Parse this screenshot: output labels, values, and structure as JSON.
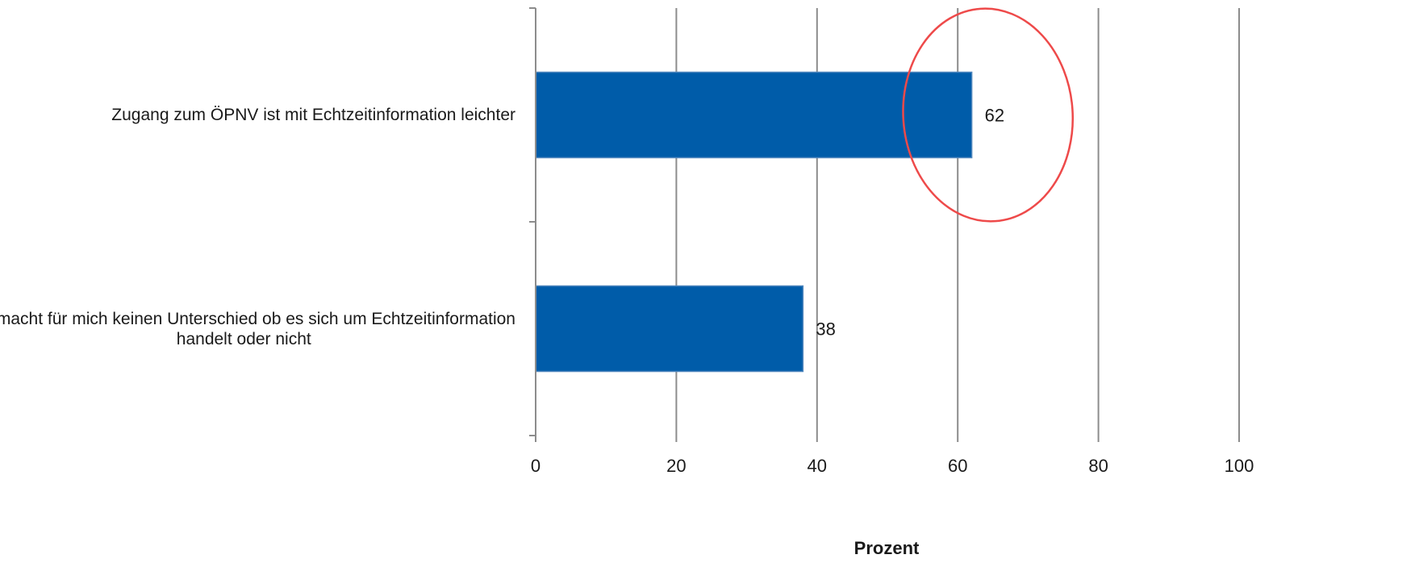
{
  "chart_data": {
    "type": "bar",
    "orientation": "horizontal",
    "categories": [
      [
        "Zugang zum ÖPNV ist mit Echtzeitinformation leichter"
      ],
      [
        "Es macht für mich keinen Unterschied ob es sich um Echtzeitinformation",
        "handelt oder nicht"
      ]
    ],
    "values": [
      62,
      38
    ],
    "data_labels": [
      "62",
      "38"
    ],
    "xlabel": "Prozent",
    "ylabel": "",
    "title": "",
    "xlim": [
      0,
      100
    ],
    "xticks": [
      0,
      20,
      40,
      60,
      80,
      100
    ],
    "grid": true,
    "bar_color": "#005ca9",
    "annotation": {
      "shape": "ellipse",
      "color": "#ee4a4a",
      "encircles": "62"
    }
  }
}
